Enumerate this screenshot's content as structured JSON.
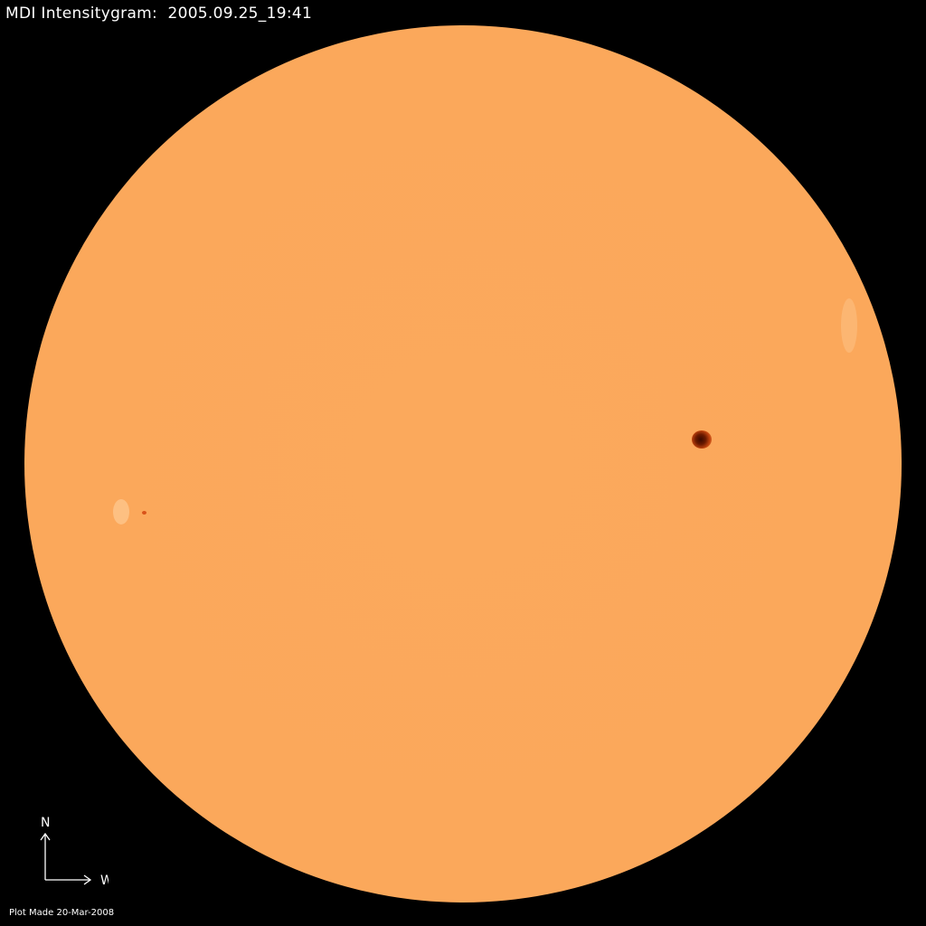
{
  "title": "MDI Intensitygram:  2005.09.25_19:41",
  "compass": {
    "north_label": "N",
    "west_label": "W"
  },
  "footer": "Plot Made 20-Mar-2008",
  "colors": {
    "background": "#000000",
    "solar_disk": "#fba85b",
    "sunspot": "#3a0a00",
    "text": "#ffffff"
  }
}
